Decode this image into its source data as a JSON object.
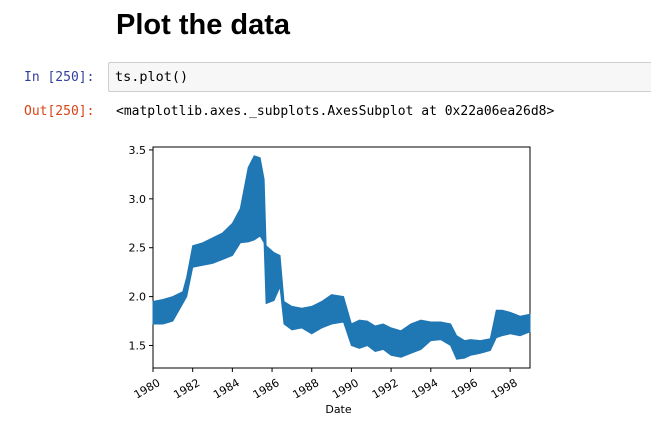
{
  "notebook": {
    "heading": "Plot the data",
    "input_cell": {
      "prompt": "In [250]:",
      "code": "ts.plot()"
    },
    "output_cell": {
      "prompt": "Out[250]:",
      "text": "<matplotlib.axes._subplots.AxesSubplot at 0x22a06ea26d8>"
    }
  },
  "chart_data": {
    "type": "line",
    "title": "",
    "xlabel": "Date",
    "ylabel": "",
    "xlim": [
      1980.0,
      1999.0
    ],
    "ylim": [
      1.27,
      3.53
    ],
    "xticks": [
      1980,
      1982,
      1984,
      1986,
      1988,
      1990,
      1992,
      1994,
      1996,
      1998
    ],
    "xtick_labels": [
      "1980",
      "1982",
      "1984",
      "1986",
      "1988",
      "1990",
      "1992",
      "1994",
      "1996",
      "1998"
    ],
    "yticks": [
      1.5,
      2.0,
      2.5,
      3.0,
      3.5
    ],
    "ytick_labels": [
      "1.5",
      "2.0",
      "2.5",
      "3.0",
      "3.5"
    ],
    "grid": false,
    "legend": false,
    "line_color": "#1f77b4",
    "series": [
      {
        "x": [
          1980.0,
          1980.5,
          1981.0,
          1981.5,
          1981.7,
          1982.0,
          1982.5,
          1983.0,
          1983.5,
          1984.0,
          1984.4,
          1984.8,
          1985.1,
          1985.4,
          1985.6,
          1985.7,
          1986.1,
          1986.4,
          1986.6,
          1987.0,
          1987.5,
          1988.0,
          1988.5,
          1989.0,
          1989.6,
          1990.0,
          1990.4,
          1990.8,
          1991.2,
          1991.6,
          1992.0,
          1992.5,
          1993.0,
          1993.5,
          1994.0,
          1994.5,
          1995.0,
          1995.3,
          1995.7,
          1996.0,
          1996.5,
          1997.0,
          1997.3,
          1997.6,
          1998.0,
          1998.5,
          1999.0
        ],
        "low": [
          1.72,
          1.72,
          1.75,
          1.93,
          2.0,
          2.3,
          2.32,
          2.34,
          2.38,
          2.42,
          2.55,
          2.56,
          2.58,
          2.62,
          2.55,
          1.93,
          1.96,
          2.1,
          1.72,
          1.66,
          1.68,
          1.62,
          1.68,
          1.72,
          1.74,
          1.5,
          1.47,
          1.5,
          1.44,
          1.46,
          1.4,
          1.38,
          1.42,
          1.46,
          1.55,
          1.56,
          1.5,
          1.36,
          1.37,
          1.4,
          1.42,
          1.45,
          1.58,
          1.6,
          1.62,
          1.6,
          1.64
        ],
        "high": [
          1.95,
          1.97,
          2.0,
          2.05,
          2.2,
          2.52,
          2.55,
          2.6,
          2.65,
          2.75,
          2.9,
          3.32,
          3.44,
          3.42,
          3.2,
          2.52,
          2.45,
          2.42,
          1.95,
          1.9,
          1.88,
          1.9,
          1.95,
          2.02,
          2.0,
          1.72,
          1.76,
          1.75,
          1.7,
          1.72,
          1.68,
          1.65,
          1.72,
          1.76,
          1.74,
          1.74,
          1.72,
          1.6,
          1.55,
          1.56,
          1.55,
          1.57,
          1.86,
          1.86,
          1.84,
          1.8,
          1.82
        ]
      }
    ]
  }
}
